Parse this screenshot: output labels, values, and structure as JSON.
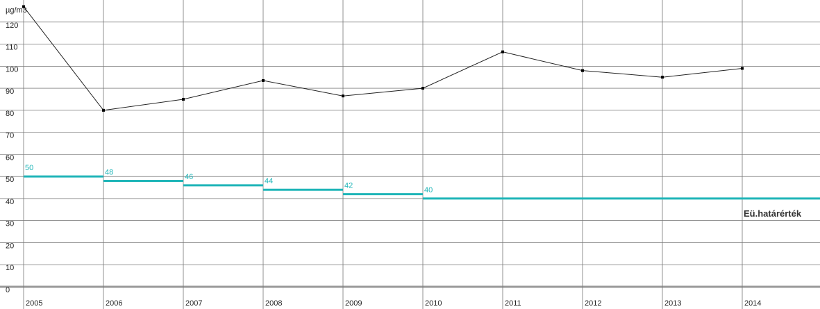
{
  "chart_data": {
    "type": "line",
    "y_unit_label": "µg/m3",
    "x": [
      2005,
      2006,
      2007,
      2008,
      2009,
      2010,
      2011,
      2012,
      2013,
      2014
    ],
    "xlim": [
      2005,
      2015
    ],
    "xticks": [
      2005,
      2006,
      2007,
      2008,
      2009,
      2010,
      2011,
      2012,
      2013,
      2014
    ],
    "ylim": [
      0,
      130
    ],
    "yticks": [
      0,
      10,
      20,
      30,
      40,
      50,
      60,
      70,
      80,
      90,
      100,
      110,
      120
    ],
    "grid": true,
    "series": [
      {
        "color": "#222222",
        "style": "line",
        "values": [
          127,
          80,
          85,
          93.5,
          86.5,
          90,
          106.5,
          98,
          95,
          99
        ]
      },
      {
        "name": "Eü.határérték",
        "color": "#1fb5b8",
        "style": "step",
        "values": [
          50,
          48,
          46,
          44,
          42,
          40,
          40,
          40,
          40,
          40
        ],
        "value_labels": [
          "50",
          "48",
          "46",
          "44",
          "42",
          "40",
          null,
          null,
          null,
          null
        ]
      }
    ]
  }
}
